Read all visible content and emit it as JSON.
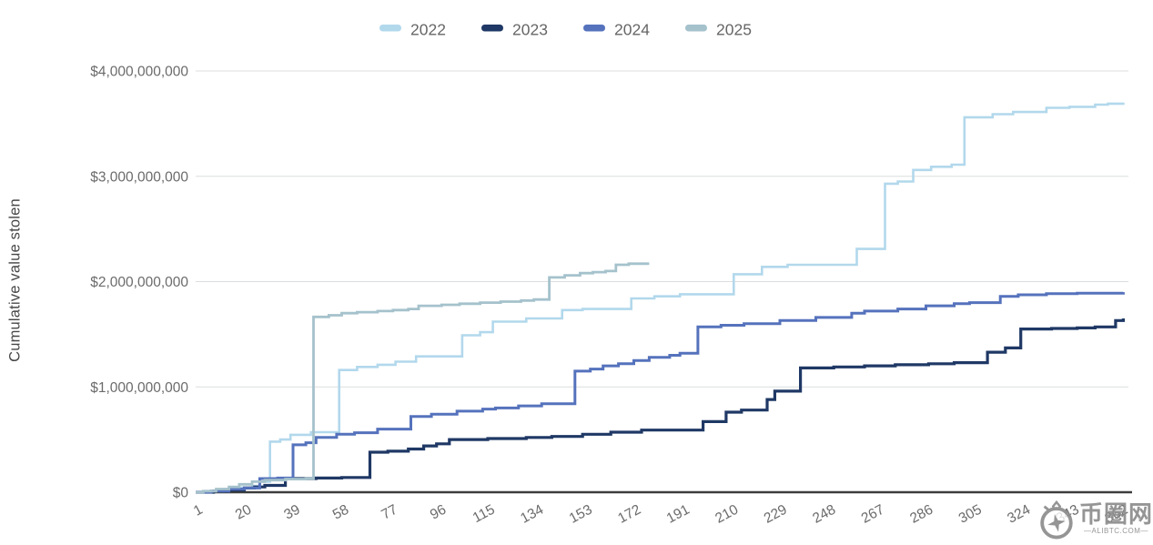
{
  "chart_data": {
    "type": "line",
    "subtype": "step-after cumulative",
    "title": "",
    "xlabel": "",
    "ylabel": "Cumulative value stolen",
    "values_unit": "USD billions",
    "xlim": [
      1,
      365
    ],
    "ylim": [
      0,
      4
    ],
    "grid": "horizontal",
    "legend_position": "top-center",
    "x_ticks": [
      1,
      20,
      39,
      58,
      77,
      96,
      115,
      134,
      153,
      172,
      191,
      210,
      229,
      248,
      267,
      286,
      305,
      324,
      343,
      362
    ],
    "y_ticks": [
      {
        "v": 0,
        "label": "$0"
      },
      {
        "v": 1,
        "label": "$1,000,000,000"
      },
      {
        "v": 2,
        "label": "$2,000,000,000"
      },
      {
        "v": 3,
        "label": "$3,000,000,000"
      },
      {
        "v": 4,
        "label": "$4,000,000,000"
      }
    ],
    "series": [
      {
        "name": "2022",
        "color": "#b2d8ec",
        "line_width": 2.6,
        "points": [
          [
            1,
            0
          ],
          [
            6,
            0.01
          ],
          [
            12,
            0.03
          ],
          [
            18,
            0.045
          ],
          [
            23,
            0.06
          ],
          [
            26,
            0.1
          ],
          [
            30,
            0.48
          ],
          [
            34,
            0.5
          ],
          [
            38,
            0.545
          ],
          [
            46,
            0.57
          ],
          [
            57,
            1.16
          ],
          [
            64,
            1.19
          ],
          [
            72,
            1.21
          ],
          [
            79,
            1.24
          ],
          [
            87,
            1.29
          ],
          [
            105,
            1.49
          ],
          [
            112,
            1.52
          ],
          [
            117,
            1.62
          ],
          [
            130,
            1.65
          ],
          [
            144,
            1.73
          ],
          [
            152,
            1.74
          ],
          [
            171,
            1.84
          ],
          [
            180,
            1.86
          ],
          [
            190,
            1.88
          ],
          [
            211,
            2.07
          ],
          [
            222,
            2.14
          ],
          [
            232,
            2.16
          ],
          [
            259,
            2.31
          ],
          [
            270,
            2.93
          ],
          [
            275,
            2.95
          ],
          [
            281,
            3.06
          ],
          [
            288,
            3.09
          ],
          [
            296,
            3.11
          ],
          [
            301,
            3.56
          ],
          [
            312,
            3.59
          ],
          [
            320,
            3.61
          ],
          [
            333,
            3.65
          ],
          [
            342,
            3.66
          ],
          [
            352,
            3.68
          ],
          [
            357,
            3.69
          ],
          [
            363,
            3.7
          ]
        ]
      },
      {
        "name": "2023",
        "color": "#1f3865",
        "line_width": 3.2,
        "points": [
          [
            1,
            0
          ],
          [
            8,
            0.01
          ],
          [
            14,
            0.02
          ],
          [
            20,
            0.04
          ],
          [
            24,
            0.05
          ],
          [
            28,
            0.065
          ],
          [
            36,
            0.13
          ],
          [
            48,
            0.135
          ],
          [
            58,
            0.14
          ],
          [
            69,
            0.38
          ],
          [
            76,
            0.39
          ],
          [
            84,
            0.41
          ],
          [
            90,
            0.44
          ],
          [
            95,
            0.46
          ],
          [
            100,
            0.5
          ],
          [
            115,
            0.51
          ],
          [
            130,
            0.52
          ],
          [
            140,
            0.53
          ],
          [
            152,
            0.55
          ],
          [
            163,
            0.57
          ],
          [
            175,
            0.59
          ],
          [
            199,
            0.67
          ],
          [
            208,
            0.76
          ],
          [
            214,
            0.78
          ],
          [
            224,
            0.88
          ],
          [
            227,
            0.96
          ],
          [
            237,
            1.18
          ],
          [
            250,
            1.19
          ],
          [
            262,
            1.2
          ],
          [
            274,
            1.21
          ],
          [
            287,
            1.22
          ],
          [
            297,
            1.23
          ],
          [
            310,
            1.33
          ],
          [
            317,
            1.37
          ],
          [
            323,
            1.55
          ],
          [
            335,
            1.555
          ],
          [
            345,
            1.56
          ],
          [
            352,
            1.57
          ],
          [
            360,
            1.63
          ],
          [
            363,
            1.65
          ]
        ]
      },
      {
        "name": "2024",
        "color": "#5572bc",
        "line_width": 3.0,
        "points": [
          [
            1,
            0
          ],
          [
            7,
            0.01
          ],
          [
            14,
            0.03
          ],
          [
            20,
            0.04
          ],
          [
            26,
            0.13
          ],
          [
            33,
            0.135
          ],
          [
            39,
            0.45
          ],
          [
            44,
            0.47
          ],
          [
            48,
            0.52
          ],
          [
            56,
            0.55
          ],
          [
            63,
            0.565
          ],
          [
            72,
            0.6
          ],
          [
            85,
            0.72
          ],
          [
            93,
            0.74
          ],
          [
            103,
            0.77
          ],
          [
            113,
            0.79
          ],
          [
            118,
            0.8
          ],
          [
            127,
            0.82
          ],
          [
            136,
            0.84
          ],
          [
            149,
            1.15
          ],
          [
            155,
            1.17
          ],
          [
            160,
            1.2
          ],
          [
            166,
            1.22
          ],
          [
            172,
            1.25
          ],
          [
            178,
            1.28
          ],
          [
            186,
            1.3
          ],
          [
            190,
            1.32
          ],
          [
            197,
            1.57
          ],
          [
            206,
            1.585
          ],
          [
            215,
            1.6
          ],
          [
            229,
            1.63
          ],
          [
            243,
            1.66
          ],
          [
            257,
            1.7
          ],
          [
            262,
            1.72
          ],
          [
            275,
            1.74
          ],
          [
            286,
            1.77
          ],
          [
            297,
            1.79
          ],
          [
            303,
            1.8
          ],
          [
            315,
            1.86
          ],
          [
            322,
            1.875
          ],
          [
            333,
            1.885
          ],
          [
            345,
            1.89
          ],
          [
            363,
            1.9
          ]
        ]
      },
      {
        "name": "2025",
        "color": "#a5c2cc",
        "line_width": 2.8,
        "points": [
          [
            1,
            0
          ],
          [
            4,
            0.01
          ],
          [
            9,
            0.03
          ],
          [
            14,
            0.05
          ],
          [
            18,
            0.075
          ],
          [
            23,
            0.1
          ],
          [
            28,
            0.115
          ],
          [
            36,
            0.125
          ],
          [
            44,
            0.13
          ],
          [
            47,
            1.665
          ],
          [
            53,
            1.68
          ],
          [
            58,
            1.7
          ],
          [
            64,
            1.71
          ],
          [
            72,
            1.72
          ],
          [
            78,
            1.73
          ],
          [
            84,
            1.74
          ],
          [
            88,
            1.77
          ],
          [
            97,
            1.78
          ],
          [
            104,
            1.79
          ],
          [
            112,
            1.8
          ],
          [
            120,
            1.81
          ],
          [
            128,
            1.82
          ],
          [
            133,
            1.83
          ],
          [
            139,
            2.04
          ],
          [
            145,
            2.06
          ],
          [
            151,
            2.08
          ],
          [
            156,
            2.09
          ],
          [
            161,
            2.1
          ],
          [
            165,
            2.16
          ],
          [
            170,
            2.17
          ],
          [
            178,
            2.17
          ]
        ]
      }
    ]
  },
  "watermark": {
    "site_name_cn": "币圈网",
    "site_domain": "—ALIBTC.COM—"
  },
  "style_colors": {
    "gridline": "#dcddde",
    "baseline": "#3d3d3d",
    "axis_text": "#6b6b6b",
    "legend_text": "#666666",
    "y_title_text": "#474747",
    "watermark_gray": "#8d8d8d",
    "background": "#ffffff"
  }
}
